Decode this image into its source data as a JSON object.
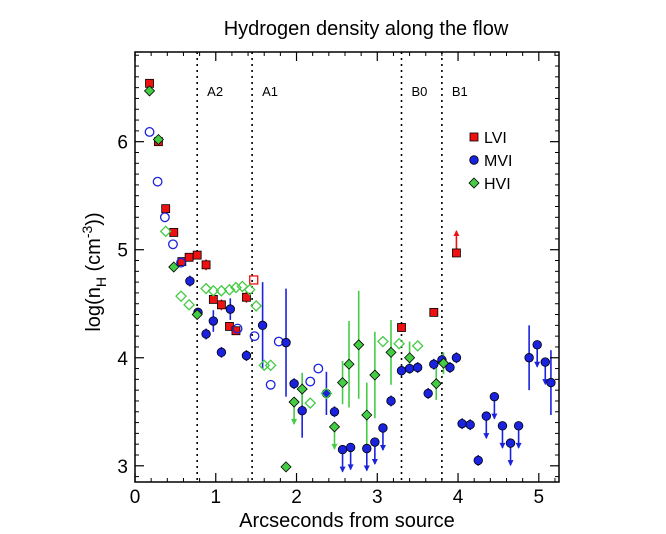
{
  "chart_data": {
    "type": "scatter",
    "title": "Hydrogen density along the flow",
    "xlabel": "Arcseconds from source",
    "ylabel_main": "log(n",
    "ylabel_sub": "H",
    "ylabel_mid": " (cm",
    "ylabel_sup": "-3",
    "ylabel_end": "))",
    "xlim": [
      0,
      5.25
    ],
    "ylim": [
      2.85,
      6.83
    ],
    "xticks": [
      0,
      1,
      2,
      3,
      4,
      5
    ],
    "yticks": [
      3,
      4,
      5,
      6
    ],
    "regions": [
      {
        "label": "A2",
        "x": 0.77
      },
      {
        "label": "A1",
        "x": 1.45
      },
      {
        "label": "B0",
        "x": 3.3
      },
      {
        "label": "B1",
        "x": 3.8
      }
    ],
    "legend": {
      "position": "top-right",
      "entries": [
        "LVI",
        "MVI",
        "HVI"
      ]
    },
    "colors": {
      "LVI": "#ee1111",
      "MVI": "#1a22dd",
      "HVI": "#44cc44",
      "edge": "#000000"
    },
    "series": [
      {
        "name": "LVI",
        "marker": "square",
        "points": [
          {
            "x": 0.18,
            "y": 6.54,
            "f": 1
          },
          {
            "x": 0.29,
            "y": 6.0,
            "f": 1
          },
          {
            "x": 0.38,
            "y": 5.38,
            "f": 1
          },
          {
            "x": 0.48,
            "y": 5.16,
            "f": 1
          },
          {
            "x": 0.58,
            "y": 4.89,
            "f": 1
          },
          {
            "x": 0.67,
            "y": 4.93,
            "f": 1
          },
          {
            "x": 0.77,
            "y": 4.95,
            "f": 1
          },
          {
            "x": 0.88,
            "y": 4.86,
            "f": 1,
            "eu": 0.05,
            "ed": 0.05
          },
          {
            "x": 0.97,
            "y": 4.54,
            "f": 1
          },
          {
            "x": 1.07,
            "y": 4.49,
            "f": 1,
            "eu": 0.05,
            "ed": 0.05
          },
          {
            "x": 1.17,
            "y": 4.29,
            "f": 1
          },
          {
            "x": 1.25,
            "y": 4.25,
            "f": 1
          },
          {
            "x": 1.38,
            "y": 4.56,
            "f": 1,
            "eu": 0.05,
            "ed": 0.05
          },
          {
            "x": 1.47,
            "y": 4.72,
            "f": 0
          },
          {
            "x": 3.3,
            "y": 4.28,
            "f": 1
          },
          {
            "x": 3.7,
            "y": 4.42,
            "f": 1
          },
          {
            "x": 3.98,
            "y": 4.97,
            "f": 1,
            "lim": "up"
          }
        ]
      },
      {
        "name": "MVI",
        "marker": "circle",
        "points": [
          {
            "x": 0.18,
            "y": 6.09,
            "f": 0
          },
          {
            "x": 0.28,
            "y": 5.63,
            "f": 0
          },
          {
            "x": 0.37,
            "y": 5.3,
            "f": 0
          },
          {
            "x": 0.47,
            "y": 5.05,
            "f": 0
          },
          {
            "x": 0.57,
            "y": 4.88,
            "f": 0
          },
          {
            "x": 0.68,
            "y": 4.71,
            "f": 1,
            "eu": 0.05,
            "ed": 0.05
          },
          {
            "x": 0.78,
            "y": 4.42,
            "f": 1
          },
          {
            "x": 0.88,
            "y": 4.22,
            "f": 1,
            "eu": 0.05,
            "ed": 0.05
          },
          {
            "x": 0.97,
            "y": 4.34,
            "f": 1,
            "eu": 0.1,
            "ed": 0.1
          },
          {
            "x": 1.07,
            "y": 4.05,
            "f": 1,
            "eu": 0.05,
            "ed": 0.05
          },
          {
            "x": 1.18,
            "y": 4.45,
            "f": 1,
            "eu": 0.1,
            "ed": 0.1
          },
          {
            "x": 1.27,
            "y": 4.27,
            "f": 0
          },
          {
            "x": 1.38,
            "y": 4.02,
            "f": 1,
            "eu": 0.05,
            "ed": 0.05
          },
          {
            "x": 1.48,
            "y": 4.2,
            "f": 0
          },
          {
            "x": 1.58,
            "y": 4.3,
            "f": 1,
            "eu": 0.4,
            "ed": 0.4
          },
          {
            "x": 1.68,
            "y": 3.75,
            "f": 0
          },
          {
            "x": 1.78,
            "y": 4.15,
            "f": 0
          },
          {
            "x": 1.87,
            "y": 4.14,
            "f": 1,
            "eu": 0.5,
            "ed": 0.5
          },
          {
            "x": 1.97,
            "y": 3.76,
            "f": 1,
            "eu": 0.05,
            "ed": 0.05
          },
          {
            "x": 2.07,
            "y": 3.51,
            "f": 1,
            "eu": 0.25,
            "ed": 0.25
          },
          {
            "x": 2.17,
            "y": 3.78,
            "f": 0
          },
          {
            "x": 2.27,
            "y": 3.9,
            "f": 0
          },
          {
            "x": 2.37,
            "y": 3.67,
            "f": 1,
            "eu": 0.2,
            "ed": 0.2
          },
          {
            "x": 2.47,
            "y": 3.5,
            "f": 1,
            "eu": 0.05,
            "ed": 0.05
          },
          {
            "x": 2.57,
            "y": 3.15,
            "f": 1,
            "lim": "down"
          },
          {
            "x": 2.67,
            "y": 3.17,
            "f": 1,
            "lim": "down"
          },
          {
            "x": 2.87,
            "y": 3.16,
            "f": 1,
            "lim": "down"
          },
          {
            "x": 2.97,
            "y": 3.22,
            "f": 1,
            "lim": "down"
          },
          {
            "x": 3.07,
            "y": 3.35,
            "f": 1,
            "lim": "down"
          },
          {
            "x": 3.17,
            "y": 3.6,
            "f": 1,
            "eu": 0.05,
            "ed": 0.05
          },
          {
            "x": 3.3,
            "y": 3.88,
            "f": 1,
            "eu": 0.05,
            "ed": 0.05
          },
          {
            "x": 3.4,
            "y": 3.9,
            "f": 1,
            "eu": 0.05,
            "ed": 0.05
          },
          {
            "x": 3.5,
            "y": 3.91,
            "f": 1,
            "eu": 0.05,
            "ed": 0.05
          },
          {
            "x": 3.63,
            "y": 3.67,
            "f": 1,
            "eu": 0.05,
            "ed": 0.05
          },
          {
            "x": 3.7,
            "y": 3.94,
            "f": 1,
            "eu": 0.05,
            "ed": 0.05
          },
          {
            "x": 3.8,
            "y": 3.98,
            "f": 1,
            "eu": 0.05,
            "ed": 0.05
          },
          {
            "x": 3.9,
            "y": 3.91,
            "f": 1,
            "eu": 0.05,
            "ed": 0.05
          },
          {
            "x": 3.98,
            "y": 4.0,
            "f": 1,
            "eu": 0.05,
            "ed": 0.05
          },
          {
            "x": 4.05,
            "y": 3.39,
            "f": 1,
            "eu": 0.05,
            "ed": 0.05
          },
          {
            "x": 4.15,
            "y": 3.38,
            "f": 1,
            "eu": 0.05,
            "ed": 0.05
          },
          {
            "x": 4.25,
            "y": 3.05,
            "f": 1,
            "eu": 0.05,
            "ed": 0.05
          },
          {
            "x": 4.35,
            "y": 3.46,
            "f": 1,
            "lim": "down"
          },
          {
            "x": 4.45,
            "y": 3.64,
            "f": 1,
            "lim": "down"
          },
          {
            "x": 4.55,
            "y": 3.37,
            "f": 1,
            "lim": "down"
          },
          {
            "x": 4.65,
            "y": 3.21,
            "f": 1,
            "lim": "down"
          },
          {
            "x": 4.75,
            "y": 3.37,
            "f": 1,
            "lim": "down"
          },
          {
            "x": 4.88,
            "y": 4.0,
            "f": 1,
            "eu": 0.3,
            "ed": 0.3
          },
          {
            "x": 4.98,
            "y": 4.12,
            "f": 1,
            "lim": "down"
          },
          {
            "x": 5.08,
            "y": 3.96,
            "f": 1,
            "lim": "down"
          },
          {
            "x": 5.15,
            "y": 3.77,
            "f": 1,
            "eu": 0.3,
            "ed": 0.3
          }
        ]
      },
      {
        "name": "HVI",
        "marker": "diamond",
        "points": [
          {
            "x": 0.18,
            "y": 6.47,
            "f": 1
          },
          {
            "x": 0.29,
            "y": 6.02,
            "f": 1
          },
          {
            "x": 0.38,
            "y": 5.17,
            "f": 0
          },
          {
            "x": 0.48,
            "y": 4.84,
            "f": 1
          },
          {
            "x": 0.57,
            "y": 4.57,
            "f": 0
          },
          {
            "x": 0.67,
            "y": 4.49,
            "f": 0
          },
          {
            "x": 0.77,
            "y": 4.4,
            "f": 1
          },
          {
            "x": 0.88,
            "y": 4.64,
            "f": 0
          },
          {
            "x": 0.97,
            "y": 4.62,
            "f": 0
          },
          {
            "x": 1.07,
            "y": 4.62,
            "f": 0
          },
          {
            "x": 1.17,
            "y": 4.63,
            "f": 0
          },
          {
            "x": 1.25,
            "y": 4.65,
            "f": 0
          },
          {
            "x": 1.33,
            "y": 4.66,
            "f": 0
          },
          {
            "x": 1.42,
            "y": 4.63,
            "f": 0
          },
          {
            "x": 1.5,
            "y": 4.48,
            "f": 0
          },
          {
            "x": 1.6,
            "y": 3.93,
            "f": 0
          },
          {
            "x": 1.68,
            "y": 3.93,
            "f": 0
          },
          {
            "x": 1.87,
            "y": 2.99,
            "f": 1
          },
          {
            "x": 1.97,
            "y": 3.59,
            "f": 1,
            "lim": "down"
          },
          {
            "x": 2.07,
            "y": 3.71,
            "f": 1,
            "eu": 0.15,
            "ed": 0.15
          },
          {
            "x": 2.17,
            "y": 3.58,
            "f": 0
          },
          {
            "x": 2.37,
            "y": 3.67,
            "f": 0
          },
          {
            "x": 2.47,
            "y": 3.36,
            "f": 1,
            "lim": "down"
          },
          {
            "x": 2.57,
            "y": 3.77,
            "f": 1,
            "eu": 0.2,
            "ed": 0.2
          },
          {
            "x": 2.65,
            "y": 3.94,
            "f": 1,
            "eu": 0.4,
            "ed": 0.4
          },
          {
            "x": 2.77,
            "y": 4.12,
            "f": 1,
            "eu": 0.5,
            "ed": 0.5
          },
          {
            "x": 2.87,
            "y": 3.47,
            "f": 1,
            "eu": 0.3,
            "ed": 0.3
          },
          {
            "x": 2.97,
            "y": 3.84,
            "f": 1,
            "eu": 0.4,
            "ed": 0.4
          },
          {
            "x": 3.07,
            "y": 4.15,
            "f": 0
          },
          {
            "x": 3.17,
            "y": 4.05,
            "f": 1,
            "eu": 0.3,
            "ed": 0.3
          },
          {
            "x": 3.27,
            "y": 4.13,
            "f": 0
          },
          {
            "x": 3.4,
            "y": 4.0,
            "f": 1,
            "eu": 0.15,
            "ed": 0.15
          },
          {
            "x": 3.5,
            "y": 4.11,
            "f": 0
          },
          {
            "x": 3.73,
            "y": 3.76,
            "f": 1,
            "eu": 0.15,
            "ed": 0.15
          },
          {
            "x": 3.82,
            "y": 3.95,
            "f": 1,
            "eu": 0.1,
            "ed": 0.1
          }
        ]
      }
    ]
  }
}
